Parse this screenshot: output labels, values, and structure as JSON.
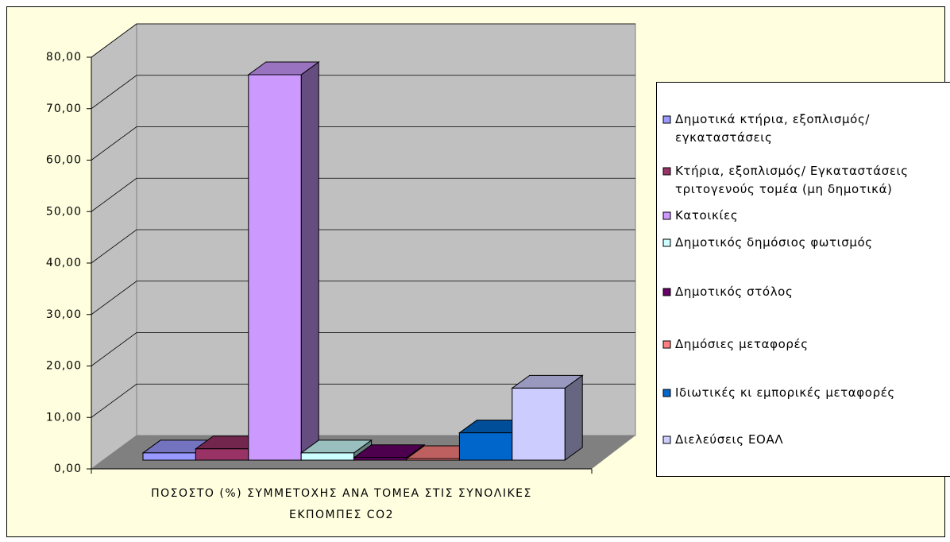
{
  "chart_data": {
    "type": "bar3d",
    "categories": [
      "ΠΟΣΟΣΤΟ (%) ΣΥΜΜΕΤΟΧΗΣ ΑΝΑ ΤΟΜΕΑ ΣΤΙΣ ΣΥΝΟΛΙΚΕΣ ΕΚΠΟΜΠΕΣ CO2"
    ],
    "series": [
      {
        "name": "Δημοτικά κτήρια, εξοπλισμός/ εγκαταστάσεις",
        "color": "#9999ff",
        "values": [
          1.4
        ]
      },
      {
        "name": "Κτήρια, εξοπλισμός/ Εγκαταστάσεις τριτογενούς τομέα (μη δημοτικά)",
        "color": "#993366",
        "values": [
          2.2
        ]
      },
      {
        "name": "Κατοικίες",
        "color": "#cc99ff",
        "values": [
          74.9
        ]
      },
      {
        "name": "Δημοτικός δημόσιος φωτισμός",
        "color": "#ccffff",
        "values": [
          1.4
        ]
      },
      {
        "name": "Δημοτικός στόλος",
        "color": "#660066",
        "values": [
          0.5
        ]
      },
      {
        "name": "Δημόσιες μεταφορές",
        "color": "#ff8080",
        "values": [
          0.3
        ]
      },
      {
        "name": "Ιδιωτικές κι εμπορικές μεταφορές",
        "color": "#0066cc",
        "values": [
          5.3
        ]
      },
      {
        "name": "Διελεύσεις ΕΟΑΛ",
        "color": "#ccccff",
        "values": [
          14.0
        ]
      }
    ],
    "ylim": [
      0,
      80
    ],
    "yticks": [
      {
        "value": 0,
        "label": "0,00"
      },
      {
        "value": 10,
        "label": "10,00"
      },
      {
        "value": 20,
        "label": "20,00"
      },
      {
        "value": 30,
        "label": "30,00"
      },
      {
        "value": 40,
        "label": "40,00"
      },
      {
        "value": 50,
        "label": "50,00"
      },
      {
        "value": 60,
        "label": "60,00"
      },
      {
        "value": 70,
        "label": "70,00"
      },
      {
        "value": 80,
        "label": "80,00"
      }
    ],
    "grid": true,
    "legend": "right"
  }
}
